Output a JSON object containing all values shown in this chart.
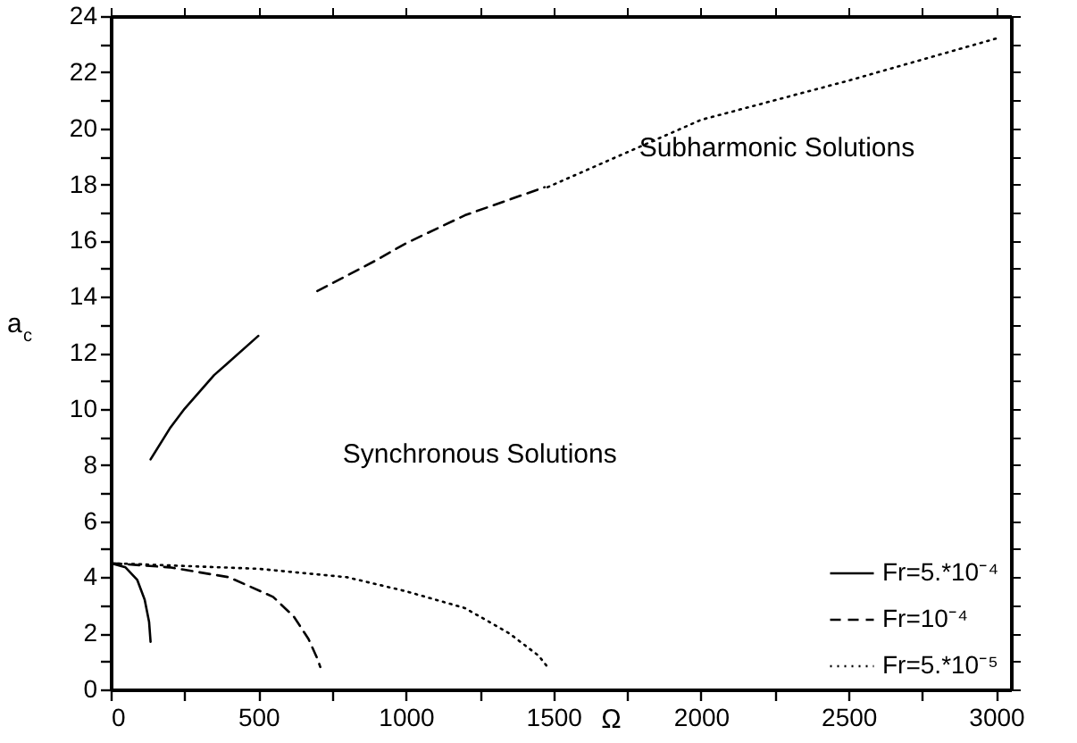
{
  "chart_data": {
    "type": "line",
    "xlabel": "Ω",
    "ylabel": "a$_{c}$",
    "xlim": [
      0,
      3050
    ],
    "ylim": [
      0,
      24
    ],
    "xticks": [
      0,
      {
        "value": 250,
        "label": null
      },
      500,
      {
        "value": 750,
        "label": null
      },
      1000,
      {
        "value": 1250,
        "label": null
      },
      1500,
      {
        "value": 1750,
        "label": null
      },
      2000,
      {
        "value": 2250,
        "label": null
      },
      2500,
      {
        "value": 2750,
        "label": null
      },
      3000
    ],
    "yticks": [
      0,
      {
        "value": 1,
        "label": null
      },
      2,
      {
        "value": 3,
        "label": null
      },
      4,
      {
        "value": 5,
        "label": null
      },
      6,
      {
        "value": 7,
        "label": null
      },
      8,
      {
        "value": 9,
        "label": null
      },
      10,
      {
        "value": 11,
        "label": null
      },
      12,
      {
        "value": 13,
        "label": null
      },
      14,
      {
        "value": 15,
        "label": null
      },
      16,
      {
        "value": 17,
        "label": null
      },
      18,
      {
        "value": 19,
        "label": null
      },
      20,
      {
        "value": 21,
        "label": null
      },
      22,
      {
        "value": 23,
        "label": null
      },
      24
    ],
    "grid": false,
    "legend": "bottom right",
    "marker": "none",
    "annotations": [
      "Subharmonic Solutions",
      "Synchronous Solutions"
    ],
    "series": [
      {
        "name": "Fr=5.*10⁻⁴",
        "color": "#000000",
        "line_style": "solid",
        "x": [
          0,
          50,
          90,
          115,
          130,
          135,
          null,
          135,
          200,
          250,
          350,
          500
        ],
        "values": [
          4.5,
          4.35,
          3.9,
          3.2,
          2.4,
          1.7,
          null,
          8.2,
          9.3,
          10.0,
          11.2,
          12.6
        ]
      },
      {
        "name": "Fr=10⁻⁴",
        "color": "#000000",
        "line_style": "dashed",
        "x": [
          0,
          200,
          400,
          550,
          620,
          670,
          700,
          710,
          null,
          700,
          900,
          1000,
          1200,
          1470
        ],
        "values": [
          4.5,
          4.35,
          4.0,
          3.3,
          2.6,
          1.8,
          1.1,
          0.8,
          null,
          14.2,
          15.3,
          15.9,
          16.9,
          17.9
        ]
      },
      {
        "name": "Fr=5.*10⁻⁵",
        "color": "#000000",
        "line_style": "dotted",
        "x": [
          0,
          500,
          800,
          1000,
          1200,
          1350,
          1450,
          1480,
          null,
          1480,
          2000,
          2500,
          3000
        ],
        "values": [
          4.5,
          4.3,
          4.0,
          3.5,
          2.9,
          2.0,
          1.2,
          0.8,
          null,
          17.9,
          20.3,
          21.7,
          23.2
        ]
      }
    ]
  }
}
